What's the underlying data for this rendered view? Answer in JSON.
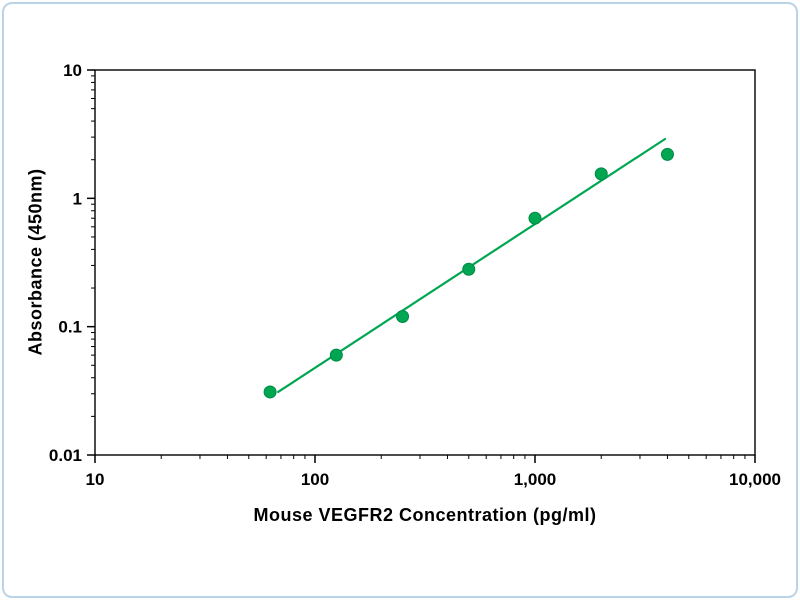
{
  "frame": {
    "border_color": "#b9d3e8",
    "background": "#ffffff"
  },
  "chart_data": {
    "type": "scatter",
    "title": "",
    "xlabel": "Mouse VEGFR2 Concentration (pg/ml)",
    "ylabel": "Absorbance (450nm)",
    "x_scale": "log",
    "y_scale": "log",
    "xlim": [
      10,
      10000
    ],
    "ylim": [
      0.01,
      10
    ],
    "grid": false,
    "legend": "none",
    "x_ticks": [
      {
        "v": 10,
        "label": "10"
      },
      {
        "v": 100,
        "label": "100"
      },
      {
        "v": 1000,
        "label": "1,000"
      },
      {
        "v": 10000,
        "label": "10,000"
      }
    ],
    "y_ticks": [
      {
        "v": 0.01,
        "label": "0.01"
      },
      {
        "v": 0.1,
        "label": "0.1"
      },
      {
        "v": 1,
        "label": "1"
      },
      {
        "v": 10,
        "label": "10"
      }
    ],
    "series": [
      {
        "name": "standard-curve-points",
        "points": [
          [
            62.5,
            0.031
          ],
          [
            125,
            0.06
          ],
          [
            250,
            0.12
          ],
          [
            500,
            0.28
          ],
          [
            1000,
            0.7
          ],
          [
            2000,
            1.55
          ],
          [
            4000,
            2.2
          ]
        ]
      }
    ],
    "trendline": [
      [
        68,
        0.031
      ],
      [
        3900,
        2.9
      ]
    ],
    "marker_color": "#00a651",
    "marker_edge_color": "#008a45",
    "line_color": "#00a651",
    "axis_color": "#000000"
  }
}
